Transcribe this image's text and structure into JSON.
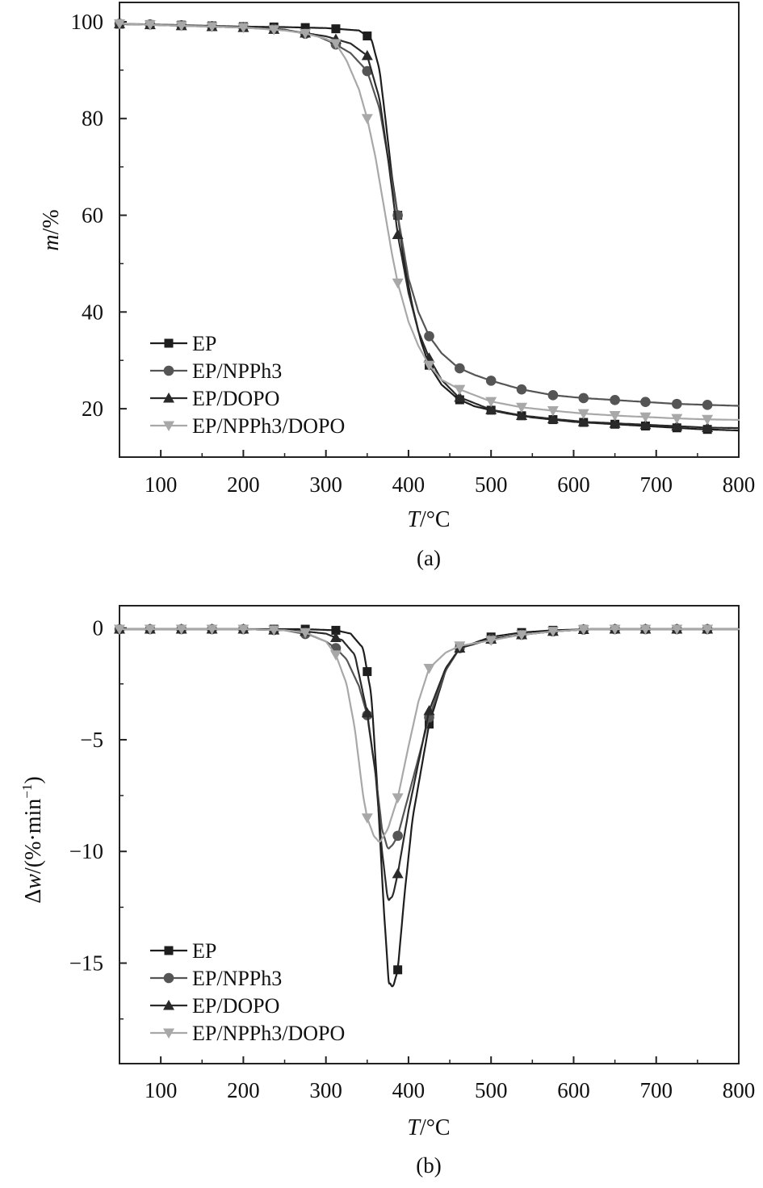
{
  "chart_data": [
    {
      "type": "line",
      "panel_label": "(a)",
      "xlabel_var": "T",
      "xlabel_unit": "/°C",
      "ylabel_var": "m",
      "ylabel_unit": "/%",
      "xlim": [
        50,
        800
      ],
      "ylim": [
        10,
        104
      ],
      "xticks": [
        "100",
        "200",
        "300",
        "400",
        "500",
        "600",
        "700",
        "800"
      ],
      "yticks": [
        "20",
        "40",
        "60",
        "80",
        "100"
      ],
      "legend_position": "bottom-left",
      "marker_x": [
        50,
        87,
        125,
        162,
        200,
        237,
        275,
        312,
        350,
        387,
        425,
        462,
        500,
        537,
        575,
        612,
        650,
        687,
        725,
        762
      ],
      "series": [
        {
          "name": "EP",
          "color": "#1e1e1e",
          "marker": "square",
          "x": [
            50,
            100,
            200,
            250,
            300,
            340,
            355,
            365,
            372,
            380,
            387,
            395,
            405,
            415,
            425,
            440,
            460,
            480,
            500,
            520,
            550,
            600,
            650,
            700,
            750,
            800
          ],
          "y": [
            99.5,
            99.4,
            99,
            98.9,
            98.7,
            98.2,
            96.5,
            90,
            80,
            68,
            60,
            50,
            41,
            34,
            29,
            25,
            22,
            20.5,
            19.7,
            19,
            18.2,
            17.3,
            16.8,
            16.3,
            15.8,
            15.5
          ]
        },
        {
          "name": "EP/NPPh3",
          "color": "#555555",
          "marker": "circle",
          "x": [
            50,
            100,
            200,
            250,
            290,
            310,
            330,
            350,
            365,
            375,
            387,
            400,
            412,
            425,
            440,
            460,
            480,
            500,
            537,
            575,
            612,
            650,
            687,
            725,
            762,
            800
          ],
          "y": [
            99.6,
            99.4,
            98.9,
            98.4,
            97,
            95.5,
            93.5,
            89.8,
            82,
            72,
            60,
            47,
            40,
            35,
            31.5,
            28.5,
            27,
            25.8,
            24,
            22.8,
            22.2,
            21.8,
            21.4,
            21,
            20.8,
            20.6
          ]
        },
        {
          "name": "EP/DOPO",
          "color": "#2a2a2a",
          "marker": "triangle",
          "x": [
            50,
            100,
            200,
            250,
            300,
            330,
            350,
            365,
            375,
            387,
            400,
            412,
            425,
            440,
            460,
            500,
            537,
            575,
            612,
            650,
            687,
            725,
            762,
            800
          ],
          "y": [
            99.6,
            99.3,
            98.8,
            98.3,
            97,
            95.5,
            93,
            84,
            72,
            56,
            44,
            36,
            30.5,
            26,
            22.5,
            19.8,
            18.6,
            17.9,
            17.3,
            17,
            16.7,
            16.4,
            16.1,
            16
          ]
        },
        {
          "name": "EP/NPPh3/DOPO",
          "color": "#a8a8a8",
          "marker": "triangle-down",
          "x": [
            50,
            100,
            200,
            250,
            275,
            300,
            312,
            325,
            340,
            350,
            360,
            370,
            380,
            387,
            400,
            412,
            425,
            440,
            462,
            500,
            537,
            575,
            612,
            650,
            687,
            725,
            762,
            800
          ],
          "y": [
            99.6,
            99.3,
            98.8,
            98.2,
            97.6,
            96.5,
            95.5,
            92,
            86,
            80,
            72,
            62,
            52,
            46,
            38,
            33,
            29,
            26,
            24,
            21.5,
            20.3,
            19.6,
            19,
            18.6,
            18.3,
            18,
            17.8,
            17.7
          ]
        }
      ]
    },
    {
      "type": "line",
      "panel_label": "(b)",
      "xlabel_var": "T",
      "xlabel_unit": "/°C",
      "ylabel_pre": "Δ",
      "ylabel_var": "w",
      "ylabel_unit": "/(%·min",
      "ylabel_sup": "−1",
      "ylabel_close": ")",
      "xlim": [
        50,
        800
      ],
      "ylim": [
        -19.5,
        1
      ],
      "xticks": [
        "100",
        "200",
        "300",
        "400",
        "500",
        "600",
        "700",
        "800"
      ],
      "yticks": [
        "0",
        "−5",
        "−10",
        "−15"
      ],
      "ytick_values": [
        0,
        -5,
        -10,
        -15
      ],
      "legend_position": "bottom-left",
      "marker_x": [
        50,
        87,
        125,
        162,
        200,
        237,
        275,
        312,
        350,
        387,
        425,
        462,
        500,
        537,
        575,
        612,
        650,
        687,
        725,
        762
      ],
      "series": [
        {
          "name": "EP",
          "color": "#1e1e1e",
          "marker": "square",
          "x": [
            50,
            100,
            200,
            275,
            312,
            330,
            345,
            355,
            362,
            370,
            376,
            381,
            387,
            395,
            405,
            425,
            445,
            462,
            500,
            537,
            575,
            620,
            700,
            800
          ],
          "y": [
            -0.05,
            -0.05,
            -0.05,
            -0.05,
            -0.1,
            -0.25,
            -0.9,
            -3,
            -7,
            -12.5,
            -15.8,
            -16.1,
            -15.3,
            -12,
            -8.5,
            -4.3,
            -1.9,
            -0.9,
            -0.4,
            -0.2,
            -0.1,
            -0.05,
            -0.05,
            -0.05
          ]
        },
        {
          "name": "EP/NPPh3",
          "color": "#555555",
          "marker": "circle",
          "x": [
            50,
            100,
            200,
            250,
            280,
            300,
            312,
            325,
            340,
            350,
            360,
            368,
            375,
            381,
            387,
            400,
            425,
            445,
            462,
            500,
            537,
            575,
            620,
            700,
            800
          ],
          "y": [
            -0.05,
            -0.05,
            -0.05,
            -0.1,
            -0.3,
            -0.6,
            -0.9,
            -1.4,
            -2.6,
            -3.9,
            -6.5,
            -9,
            -9.9,
            -9.7,
            -9.3,
            -7.5,
            -4,
            -1.9,
            -0.9,
            -0.5,
            -0.3,
            -0.15,
            -0.05,
            -0.05,
            -0.05
          ]
        },
        {
          "name": "EP/DOPO",
          "color": "#2a2a2a",
          "marker": "triangle",
          "x": [
            50,
            100,
            200,
            250,
            275,
            300,
            320,
            335,
            350,
            360,
            368,
            375,
            381,
            387,
            400,
            425,
            445,
            462,
            500,
            537,
            575,
            620,
            700,
            800
          ],
          "y": [
            -0.05,
            -0.05,
            -0.05,
            -0.1,
            -0.15,
            -0.25,
            -0.55,
            -1.2,
            -3.8,
            -6.5,
            -10,
            -12.2,
            -12,
            -11,
            -8.2,
            -3.7,
            -1.8,
            -0.9,
            -0.5,
            -0.3,
            -0.15,
            -0.05,
            -0.05,
            -0.05
          ]
        },
        {
          "name": "EP/NPPh3/DOPO",
          "color": "#a8a8a8",
          "marker": "triangle-down",
          "x": [
            50,
            100,
            200,
            250,
            275,
            300,
            312,
            325,
            335,
            345,
            350,
            358,
            365,
            375,
            387,
            400,
            412,
            425,
            445,
            462,
            500,
            537,
            575,
            620,
            700,
            800
          ],
          "y": [
            -0.05,
            -0.05,
            -0.05,
            -0.1,
            -0.2,
            -0.6,
            -1.2,
            -2.5,
            -4.5,
            -7.5,
            -8.5,
            -9.3,
            -9.6,
            -9,
            -7.6,
            -5.3,
            -3.3,
            -1.8,
            -1.1,
            -0.8,
            -0.55,
            -0.3,
            -0.15,
            -0.05,
            -0.05,
            -0.05
          ]
        }
      ]
    }
  ]
}
